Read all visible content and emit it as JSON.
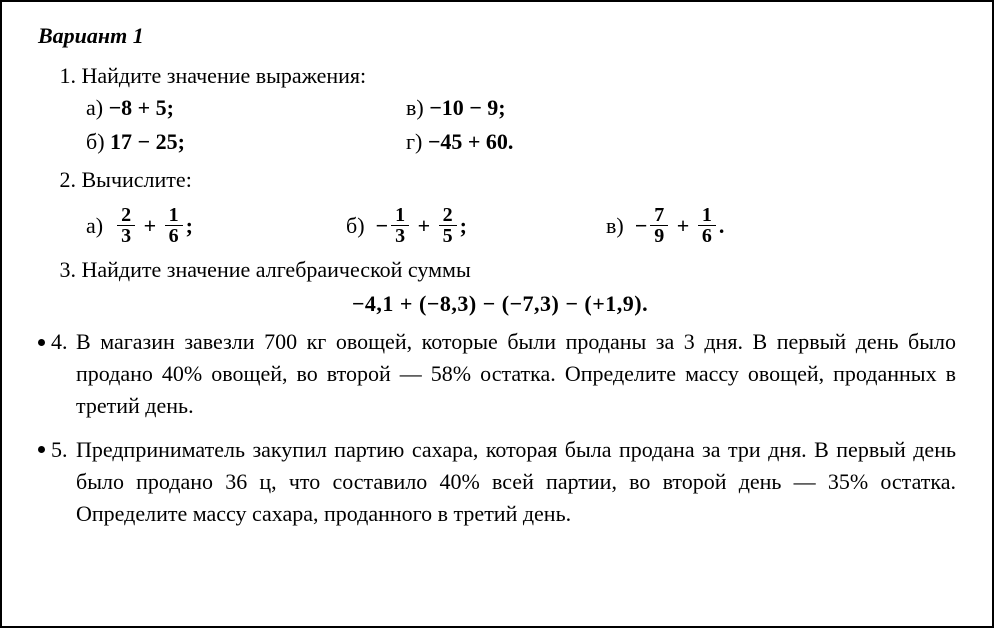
{
  "title": "Вариант 1",
  "problem1": {
    "number": "1.",
    "prompt": "Найдите значение выражения:",
    "a_label": "а)",
    "a_expr": "−8 + 5;",
    "b_label": "б)",
    "b_expr": "17 − 25;",
    "v_label": "в)",
    "v_expr": "−10 − 9;",
    "g_label": "г)",
    "g_expr": "−45 + 60."
  },
  "problem2": {
    "number": "2.",
    "prompt": "Вычислите:",
    "a": {
      "label": "а)",
      "n1": "2",
      "d1": "3",
      "op": "+",
      "n2": "1",
      "d2": "6",
      "end": ";"
    },
    "b": {
      "label": "б)",
      "pre": "−",
      "n1": "1",
      "d1": "3",
      "op": "+",
      "n2": "2",
      "d2": "5",
      "end": ";"
    },
    "v": {
      "label": "в)",
      "pre": "−",
      "n1": "7",
      "d1": "9",
      "op": "+",
      "n2": "1",
      "d2": "6",
      "end": "."
    }
  },
  "problem3": {
    "number": "3.",
    "prompt": "Найдите значение алгебраической суммы",
    "expr": "−4,1 + (−8,3) − (−7,3) − (+1,9)."
  },
  "problem4": {
    "number": "4.",
    "text": "В магазин завезли 700 кг овощей, которые были проданы за 3 дня. В первый день было продано 40% овощей, во второй — 58% остатка. Определите массу овощей, проданных в третий день."
  },
  "problem5": {
    "number": "5.",
    "text": "Предприниматель закупил партию сахара, которая была прода­на за три дня. В первый день было продано 36 ц, что составило 40% всей партии, во второй день — 35% остатка. Определите массу сахара, проданного в третий день."
  }
}
